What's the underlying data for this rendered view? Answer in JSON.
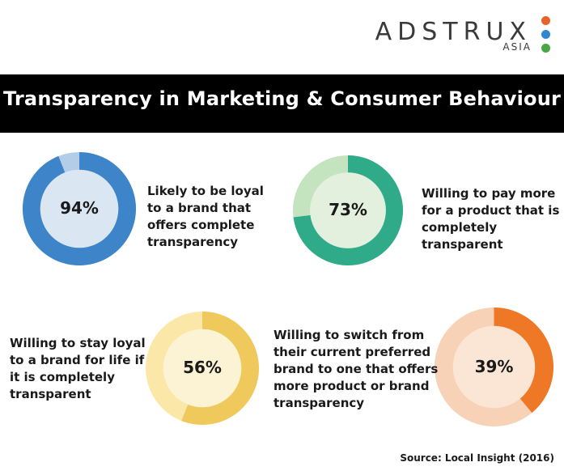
{
  "logo": {
    "word": "ADSTRUX",
    "sub": "ASIA",
    "dot_colors": [
      "#e8632a",
      "#2f87d0",
      "#4aa544"
    ]
  },
  "title": "Transparency in Marketing & Consumer Behaviour",
  "chart_data": {
    "type": "pie",
    "title": "Transparency in Marketing & Consumer Behaviour",
    "items": [
      {
        "value": 94,
        "label": "94%",
        "description": "Likely to be loyal\nto a brand that\noffers complete\ntransparency",
        "fill_color": "#3d84c9",
        "rest_color": "#b3cde8",
        "center_color": "#dbe6f3"
      },
      {
        "value": 73,
        "label": "73%",
        "description": "Willing to pay more\nfor a product that is\ncompletely\ntransparent",
        "fill_color": "#2fab8a",
        "rest_color": "#c4e3bf",
        "center_color": "#e3f0dd"
      },
      {
        "value": 56,
        "label": "56%",
        "description": "Willing to stay loyal\nto a brand for life if\nit is completely\ntransparent",
        "fill_color": "#efc95c",
        "rest_color": "#fbe7a8",
        "center_color": "#fbf3d4"
      },
      {
        "value": 39,
        "label": "39%",
        "description": "Willing to switch from\ntheir current preferred\nbrand to one that offers\nmore product or brand\ntransparency",
        "fill_color": "#ee7825",
        "rest_color": "#f8d2b7",
        "center_color": "#fbe6d6"
      }
    ]
  },
  "source": "Source: Local Insight (2016)"
}
